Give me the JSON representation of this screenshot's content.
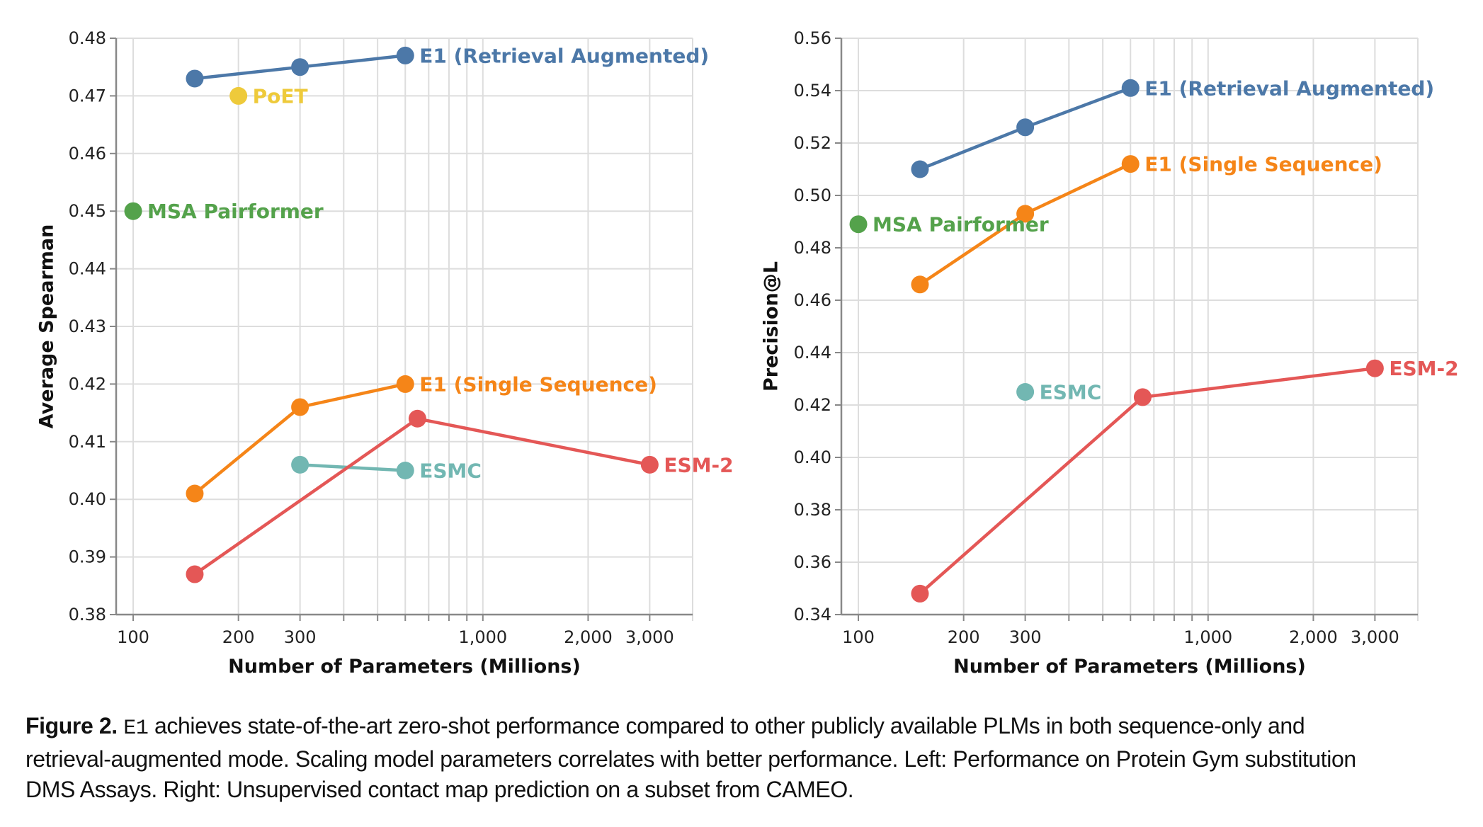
{
  "colors": {
    "e1_retrieval": "#4c78a8",
    "e1_single": "#f58518",
    "esm2": "#e45756",
    "esmc": "#72b7b2",
    "msa": "#54a24b",
    "poet": "#eeca3b"
  },
  "chart_data": [
    {
      "type": "line",
      "title": "",
      "xlabel": "Number of Parameters (Millions)",
      "ylabel": "Average Spearman",
      "xscale": "log",
      "xlim": [
        89.4,
        3980
      ],
      "ylim": [
        0.38,
        0.48
      ],
      "yticks": [
        "0.38",
        "0.39",
        "0.40",
        "0.41",
        "0.42",
        "0.43",
        "0.44",
        "0.45",
        "0.46",
        "0.47",
        "0.48"
      ],
      "xticks": [
        {
          "v": 100,
          "label": "100"
        },
        {
          "v": 200,
          "label": "200"
        },
        {
          "v": 300,
          "label": "300"
        },
        {
          "v": 1000,
          "label": "1,000"
        },
        {
          "v": 2000,
          "label": "2,000"
        },
        {
          "v": 3000,
          "label": "3,000"
        }
      ],
      "grid": true,
      "series": [
        {
          "name": "E1 (Retrieval Augmented)",
          "color_key": "e1_retrieval",
          "x": [
            150,
            300,
            600
          ],
          "y": [
            0.473,
            0.475,
            0.477
          ]
        },
        {
          "name": "PoET",
          "color_key": "poet",
          "x": [
            200
          ],
          "y": [
            0.47
          ]
        },
        {
          "name": "MSA Pairformer",
          "color_key": "msa",
          "x": [
            100
          ],
          "y": [
            0.45
          ]
        },
        {
          "name": "E1 (Single Sequence)",
          "color_key": "e1_single",
          "x": [
            150,
            300,
            600
          ],
          "y": [
            0.401,
            0.416,
            0.42
          ]
        },
        {
          "name": "ESMC",
          "color_key": "esmc",
          "x": [
            300,
            600
          ],
          "y": [
            0.406,
            0.405
          ]
        },
        {
          "name": "ESM-2",
          "color_key": "esm2",
          "x": [
            150,
            650,
            3000
          ],
          "y": [
            0.387,
            0.414,
            0.406
          ]
        }
      ]
    },
    {
      "type": "line",
      "title": "",
      "xlabel": "Number of Parameters (Millions)",
      "ylabel": "Precision@L",
      "xscale": "log",
      "xlim": [
        89.4,
        3980
      ],
      "ylim": [
        0.34,
        0.56
      ],
      "yticks": [
        "0.34",
        "0.36",
        "0.38",
        "0.40",
        "0.42",
        "0.44",
        "0.46",
        "0.48",
        "0.50",
        "0.52",
        "0.54",
        "0.56"
      ],
      "xticks": [
        {
          "v": 100,
          "label": "100"
        },
        {
          "v": 200,
          "label": "200"
        },
        {
          "v": 300,
          "label": "300"
        },
        {
          "v": 1000,
          "label": "1,000"
        },
        {
          "v": 2000,
          "label": "2,000"
        },
        {
          "v": 3000,
          "label": "3,000"
        }
      ],
      "grid": true,
      "series": [
        {
          "name": "E1 (Retrieval Augmented)",
          "color_key": "e1_retrieval",
          "x": [
            150,
            300,
            600
          ],
          "y": [
            0.51,
            0.526,
            0.541
          ]
        },
        {
          "name": "E1 (Single Sequence)",
          "color_key": "e1_single",
          "x": [
            150,
            300,
            600
          ],
          "y": [
            0.466,
            0.493,
            0.512
          ]
        },
        {
          "name": "MSA Pairformer",
          "color_key": "msa",
          "x": [
            100
          ],
          "y": [
            0.489
          ]
        },
        {
          "name": "ESMC",
          "color_key": "esmc",
          "x": [
            300
          ],
          "y": [
            0.425
          ]
        },
        {
          "name": "ESM-2",
          "color_key": "esm2",
          "x": [
            150,
            650,
            3000
          ],
          "y": [
            0.348,
            0.423,
            0.434
          ]
        }
      ]
    }
  ],
  "caption": {
    "label": "Figure 2.",
    "model": "E1",
    "line1": " achieves state-of-the-art zero-shot performance compared to other publicly available PLMs in both sequence-only and",
    "line2": "retrieval-augmented mode. Scaling model parameters correlates with better performance. Left: Performance on Protein Gym substitution",
    "line3": "DMS Assays. Right: Unsupervised contact map prediction on a subset from CAMEO."
  }
}
